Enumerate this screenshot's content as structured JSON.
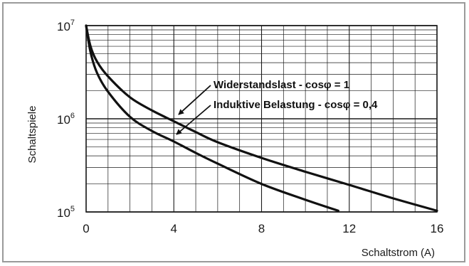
{
  "chart_data": {
    "type": "line",
    "xlabel": "Schaltstrom",
    "xunit": "(A)",
    "ylabel": "Schaltspiele",
    "xlim": [
      0,
      16
    ],
    "ylim": [
      100000,
      10000000
    ],
    "yscale": "log",
    "grid": true,
    "x_ticks": [
      0,
      4,
      8,
      12,
      16
    ],
    "x_tick_labels": [
      "0",
      "4",
      "8",
      "12",
      "16"
    ],
    "y_ticks": [
      {
        "base": "10",
        "exp": "5",
        "value": 100000
      },
      {
        "base": "10",
        "exp": "6",
        "value": 1000000
      },
      {
        "base": "10",
        "exp": "7",
        "value": 10000000
      }
    ],
    "series": [
      {
        "name": "Widerstandslast - cosφ = 1",
        "x": [
          0,
          0.2,
          0.5,
          1,
          2,
          3,
          4,
          5,
          6,
          8,
          10,
          12,
          14,
          16
        ],
        "y": [
          10000000,
          6000000,
          4100000,
          2850000,
          1700000,
          1230000,
          940000,
          720000,
          560000,
          380000,
          270000,
          195000,
          140000,
          103000
        ]
      },
      {
        "name": "Induktive Belastung - cosφ = 0,4",
        "x": [
          0,
          0.2,
          0.5,
          1,
          2,
          3,
          4,
          5,
          6,
          8,
          10,
          11.5
        ],
        "y": [
          10000000,
          5200000,
          3100000,
          1950000,
          1050000,
          740000,
          570000,
          430000,
          330000,
          200000,
          135000,
          103000
        ]
      }
    ],
    "annotations": [
      {
        "text": "Widerstandslast - cosφ = 1",
        "points_to_series": 0
      },
      {
        "text": "Induktive Belastung - cosφ = 0,4",
        "points_to_series": 1
      }
    ],
    "colors": {
      "line": "#111111",
      "grid": "#1a1a1a",
      "frame": "#9a9a9a",
      "background": "#ffffff"
    }
  }
}
